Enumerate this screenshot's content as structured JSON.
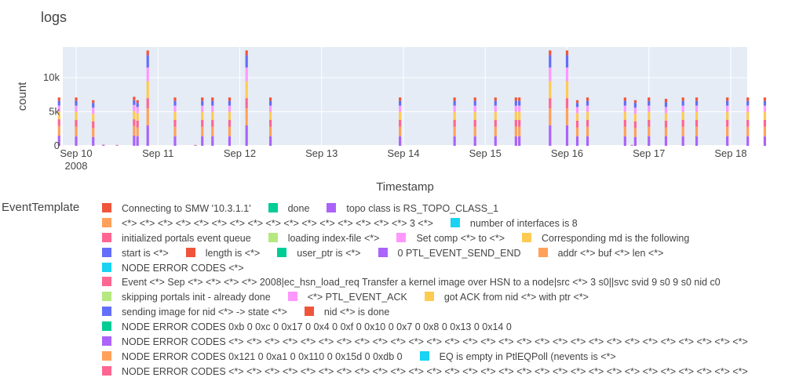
{
  "title": "logs",
  "legend_title": "EventTemplate",
  "chart_data": {
    "type": "bar",
    "stacked": true,
    "title": "logs",
    "xlabel": "Timestamp",
    "ylabel": "count",
    "ylim": [
      0,
      14500
    ],
    "xlim": [
      "2008-09-10 00:00",
      "2008-09-18 06:00"
    ],
    "y_ticks": [
      {
        "value": 0,
        "label": "0"
      },
      {
        "value": 5000,
        "label": "5k"
      },
      {
        "value": 10000,
        "label": "10k"
      }
    ],
    "x_ticks": [
      {
        "value": "2008-09-10",
        "label": "Sep 10",
        "sublabel": "2008"
      },
      {
        "value": "2008-09-11",
        "label": "Sep 11"
      },
      {
        "value": "2008-09-12",
        "label": "Sep 12"
      },
      {
        "value": "2008-09-13",
        "label": "Sep 13"
      },
      {
        "value": "2008-09-14",
        "label": "Sep 14"
      },
      {
        "value": "2008-09-15",
        "label": "Sep 15"
      },
      {
        "value": "2008-09-16",
        "label": "Sep 16"
      },
      {
        "value": "2008-09-17",
        "label": "Sep 17"
      },
      {
        "value": "2008-09-18",
        "label": "Sep 18"
      }
    ],
    "grid": true,
    "legend_position": "bottom",
    "series_colors": [
      "#ab63fa",
      "#ffa15a",
      "#ff6692",
      "#fecb52",
      "#ff97ff",
      "#636efa",
      "#ef553b"
    ],
    "bars": [
      {
        "x": "2008-09-09 19:00",
        "stack": [
          1500,
          1400,
          1000,
          1100,
          900,
          700,
          500
        ]
      },
      {
        "x": "2008-09-10 00:00",
        "stack": [
          1400,
          1400,
          1000,
          1200,
          900,
          700,
          500
        ]
      },
      {
        "x": "2008-09-10 05:00",
        "stack": [
          1300,
          1300,
          1000,
          1100,
          900,
          700,
          400
        ]
      },
      {
        "x": "2008-09-10 08:00",
        "stack": [
          150,
          50,
          0,
          0,
          0,
          0,
          0
        ]
      },
      {
        "x": "2008-09-10 12:00",
        "stack": [
          100,
          50,
          0,
          0,
          0,
          0,
          0
        ]
      },
      {
        "x": "2008-09-10 17:00",
        "stack": [
          1500,
          1400,
          1000,
          1200,
          900,
          700,
          500
        ]
      },
      {
        "x": "2008-09-10 18:00",
        "stack": [
          1400,
          1300,
          1000,
          1100,
          900,
          600,
          400
        ]
      },
      {
        "x": "2008-09-10 21:00",
        "stack": [
          3000,
          2500,
          1500,
          2500,
          2000,
          1800,
          700
        ]
      },
      {
        "x": "2008-09-11 05:00",
        "stack": [
          1400,
          1400,
          1000,
          1200,
          900,
          700,
          500
        ]
      },
      {
        "x": "2008-09-11 11:00",
        "stack": [
          100,
          50,
          0,
          0,
          0,
          0,
          0
        ]
      },
      {
        "x": "2008-09-11 13:00",
        "stack": [
          1400,
          1400,
          1000,
          1200,
          900,
          700,
          500
        ]
      },
      {
        "x": "2008-09-11 16:00",
        "stack": [
          1400,
          1400,
          1000,
          1200,
          900,
          700,
          500
        ]
      },
      {
        "x": "2008-09-11 21:00",
        "stack": [
          1400,
          1400,
          1000,
          1200,
          900,
          700,
          500
        ]
      },
      {
        "x": "2008-09-12 02:00",
        "stack": [
          3000,
          2500,
          1500,
          2500,
          2000,
          1800,
          700
        ]
      },
      {
        "x": "2008-09-12 09:00",
        "stack": [
          1400,
          1400,
          1000,
          1200,
          900,
          700,
          500
        ]
      },
      {
        "x": "2008-09-13 23:00",
        "stack": [
          1400,
          1400,
          1000,
          1200,
          900,
          700,
          500
        ]
      },
      {
        "x": "2008-09-14 15:00",
        "stack": [
          1400,
          1400,
          1000,
          1200,
          900,
          700,
          500
        ]
      },
      {
        "x": "2008-09-14 21:00",
        "stack": [
          1400,
          1400,
          1000,
          1200,
          900,
          700,
          500
        ]
      },
      {
        "x": "2008-09-15 03:00",
        "stack": [
          1400,
          1400,
          1000,
          1200,
          900,
          700,
          500
        ]
      },
      {
        "x": "2008-09-15 09:00",
        "stack": [
          1400,
          1400,
          1000,
          1200,
          900,
          700,
          500
        ]
      },
      {
        "x": "2008-09-15 10:00",
        "stack": [
          1400,
          1400,
          1000,
          1200,
          900,
          700,
          500
        ]
      },
      {
        "x": "2008-09-15 19:00",
        "stack": [
          3000,
          2500,
          1500,
          2500,
          2000,
          1800,
          700
        ]
      },
      {
        "x": "2008-09-16 00:00",
        "stack": [
          3000,
          2500,
          1500,
          2500,
          2000,
          1800,
          700
        ]
      },
      {
        "x": "2008-09-16 03:00",
        "stack": [
          1400,
          1300,
          1000,
          1100,
          900,
          600,
          400
        ]
      },
      {
        "x": "2008-09-16 06:00",
        "stack": [
          1400,
          1400,
          1000,
          1200,
          900,
          700,
          500
        ]
      },
      {
        "x": "2008-09-16 17:00",
        "stack": [
          1400,
          1400,
          1000,
          1200,
          900,
          700,
          500
        ]
      },
      {
        "x": "2008-09-16 19:00",
        "stack": [
          100,
          50,
          0,
          0,
          0,
          0,
          0
        ]
      },
      {
        "x": "2008-09-16 20:00",
        "stack": [
          1300,
          1300,
          1000,
          1100,
          900,
          700,
          400
        ]
      },
      {
        "x": "2008-09-17 00:00",
        "stack": [
          1400,
          1400,
          1000,
          1200,
          900,
          700,
          500
        ]
      },
      {
        "x": "2008-09-17 05:00",
        "stack": [
          1400,
          1300,
          1000,
          1100,
          900,
          700,
          500
        ]
      },
      {
        "x": "2008-09-17 10:00",
        "stack": [
          1400,
          1400,
          1000,
          1200,
          900,
          700,
          500
        ]
      },
      {
        "x": "2008-09-17 14:00",
        "stack": [
          1400,
          1400,
          1000,
          1200,
          900,
          700,
          500
        ]
      },
      {
        "x": "2008-09-17 23:00",
        "stack": [
          1400,
          1400,
          1000,
          1200,
          900,
          700,
          500
        ]
      },
      {
        "x": "2008-09-18 05:00",
        "stack": [
          1400,
          1400,
          1000,
          1200,
          900,
          700,
          500
        ]
      },
      {
        "x": "2008-09-18 10:00",
        "stack": [
          1400,
          1400,
          1000,
          1200,
          900,
          700,
          500
        ]
      }
    ],
    "legend_rows": [
      [
        {
          "color": "#ef553b",
          "label": "Connecting to SMW '10.3.1.1'"
        },
        {
          "color": "#00cc96",
          "label": "done"
        },
        {
          "color": "#ab63fa",
          "label": "topo class is RS_TOPO_CLASS_1"
        }
      ],
      [
        {
          "color": "#ffa15a",
          "label": "<*> <*> <*> <*> <*> <*> <*> <*> <*> <*> <*> <*> <*> <*> <*> <*> 3 <*>"
        },
        {
          "color": "#19d3f3",
          "label": "number of interfaces is 8"
        }
      ],
      [
        {
          "color": "#ff6692",
          "label": "initialized portals event queue"
        },
        {
          "color": "#b6e880",
          "label": "loading index-file <*>"
        },
        {
          "color": "#ff97ff",
          "label": "Set comp <*> to <*>"
        },
        {
          "color": "#fecb52",
          "label": "Corresponding md is the following"
        }
      ],
      [
        {
          "color": "#636efa",
          "label": "start is <*>"
        },
        {
          "color": "#ef553b",
          "label": "length is <*>"
        },
        {
          "color": "#00cc96",
          "label": "user_ptr is <*>"
        },
        {
          "color": "#ab63fa",
          "label": "0 PTL_EVENT_SEND_END"
        },
        {
          "color": "#ffa15a",
          "label": "addr <*> buf <*> len <*>"
        }
      ],
      [
        {
          "color": "#19d3f3",
          "label": "NODE ERROR CODES <*>"
        }
      ],
      [
        {
          "color": "#ff6692",
          "label": "Event <*> Sep <*> <*> <*> <*> 2008|ec_hsn_load_req Transfer a kernel image over HSN to a node|src <*> 3 s0||svc svid 9 s0 9 s0 nid c0"
        }
      ],
      [
        {
          "color": "#b6e880",
          "label": "skipping portals init - already done"
        },
        {
          "color": "#ff97ff",
          "label": "<*> PTL_EVENT_ACK"
        },
        {
          "color": "#fecb52",
          "label": "got ACK from nid <*> with ptr <*>"
        }
      ],
      [
        {
          "color": "#636efa",
          "label": "sending image for nid <*> -> state <*>"
        },
        {
          "color": "#ef553b",
          "label": "nid <*> is done"
        }
      ],
      [
        {
          "color": "#00cc96",
          "label": "NODE ERROR CODES 0xb 0 0xc 0 0x17 0 0x4 0 0xf 0 0x10 0 0x7 0 0x8 0 0x13 0 0x14 0"
        }
      ],
      [
        {
          "color": "#ab63fa",
          "label": "NODE ERROR CODES <*> <*> <*> <*> <*> <*> <*> <*> <*> <*> <*> <*> <*> <*> <*> <*> <*> <*> <*> <*> <*> <*> <*> <*> <*> <*> <*> <*> <*>"
        }
      ],
      [
        {
          "color": "#ffa15a",
          "label": "NODE ERROR CODES 0x121 0 0xa1 0 0x110 0 0x15d 0 0xdb 0"
        },
        {
          "color": "#19d3f3",
          "label": "EQ is empty in PtlEQPoll (nevents is <*>"
        }
      ],
      [
        {
          "color": "#ff6692",
          "label": "NODE ERROR CODES <*> <*> <*> <*> <*> <*> <*> <*> <*> <*> <*> <*> <*> <*> <*> <*> <*> <*> <*> <*> <*> <*> <*> <*> <*> <*> <*> <*> <*>"
        }
      ]
    ]
  }
}
